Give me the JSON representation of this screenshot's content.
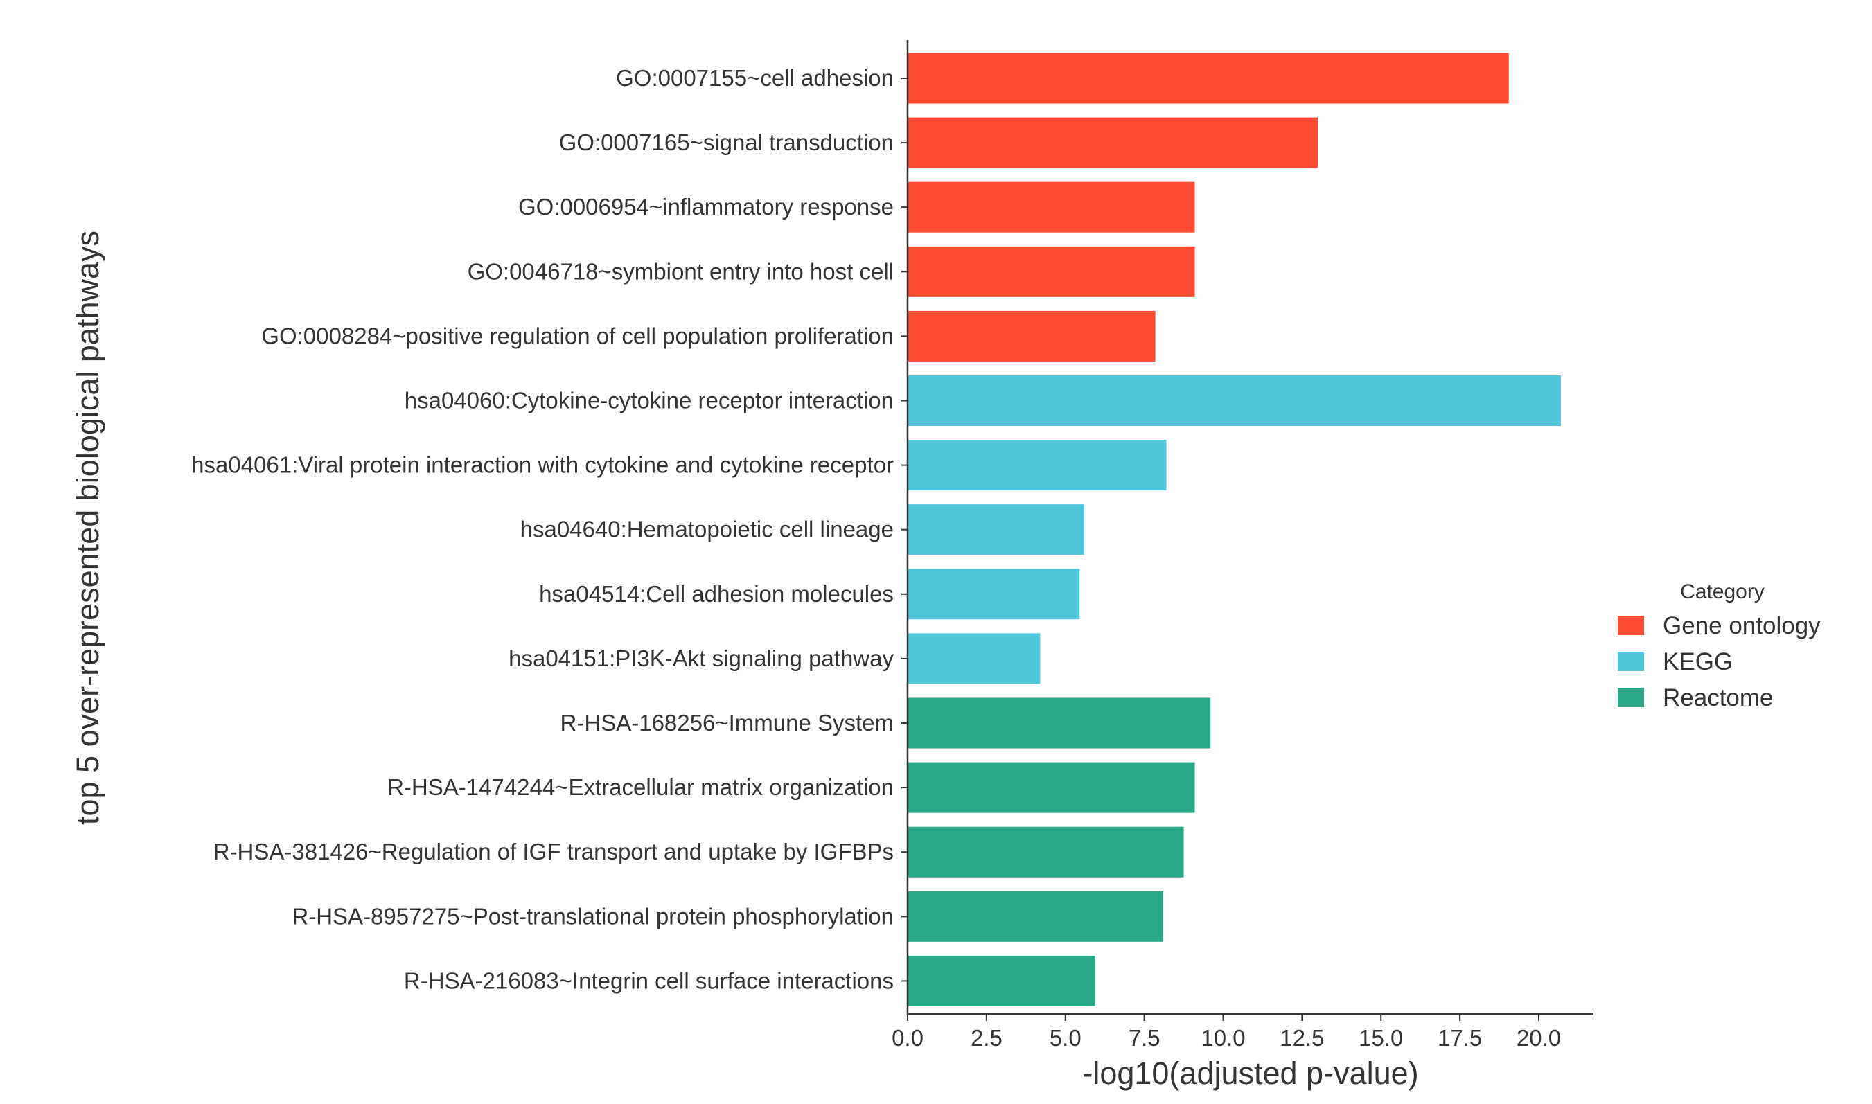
{
  "chart_data": {
    "type": "bar",
    "orientation": "horizontal",
    "xlabel": "-log10(adjusted p-value)",
    "ylabel": "top 5 over-represented biological pathways",
    "xlim": [
      0,
      21.7
    ],
    "xticks": [
      "0.0",
      "2.5",
      "5.0",
      "7.5",
      "10.0",
      "12.5",
      "15.0",
      "17.5",
      "20.0"
    ],
    "grid": false,
    "legend": {
      "title": "Category",
      "placement": "right",
      "entries": [
        {
          "name": "Gene ontology",
          "color": "#FF4B33"
        },
        {
          "name": "KEGG",
          "color": "#4FC6DA"
        },
        {
          "name": "Reactome",
          "color": "#2BA888"
        }
      ]
    },
    "categories": [
      "GO:0007155~cell adhesion",
      "GO:0007165~signal transduction",
      "GO:0006954~inflammatory response",
      "GO:0046718~symbiont entry into host cell",
      "GO:0008284~positive regulation of cell population proliferation",
      "hsa04060:Cytokine-cytokine receptor interaction",
      "hsa04061:Viral protein interaction with cytokine and cytokine receptor",
      "hsa04640:Hematopoietic cell lineage",
      "hsa04514:Cell adhesion molecules",
      "hsa04151:PI3K-Akt signaling pathway",
      "R-HSA-168256~Immune System",
      "R-HSA-1474244~Extracellular matrix organization",
      "R-HSA-381426~Regulation of IGF transport and uptake by IGFBPs",
      "R-HSA-8957275~Post-translational protein phosphorylation",
      "R-HSA-216083~Integrin cell surface interactions"
    ],
    "values": [
      19.05,
      13.0,
      9.1,
      9.1,
      7.85,
      20.7,
      8.2,
      5.6,
      5.45,
      4.2,
      9.6,
      9.1,
      8.75,
      8.1,
      5.95
    ],
    "category_group": [
      "Gene ontology",
      "Gene ontology",
      "Gene ontology",
      "Gene ontology",
      "Gene ontology",
      "KEGG",
      "KEGG",
      "KEGG",
      "KEGG",
      "KEGG",
      "Reactome",
      "Reactome",
      "Reactome",
      "Reactome",
      "Reactome"
    ]
  }
}
